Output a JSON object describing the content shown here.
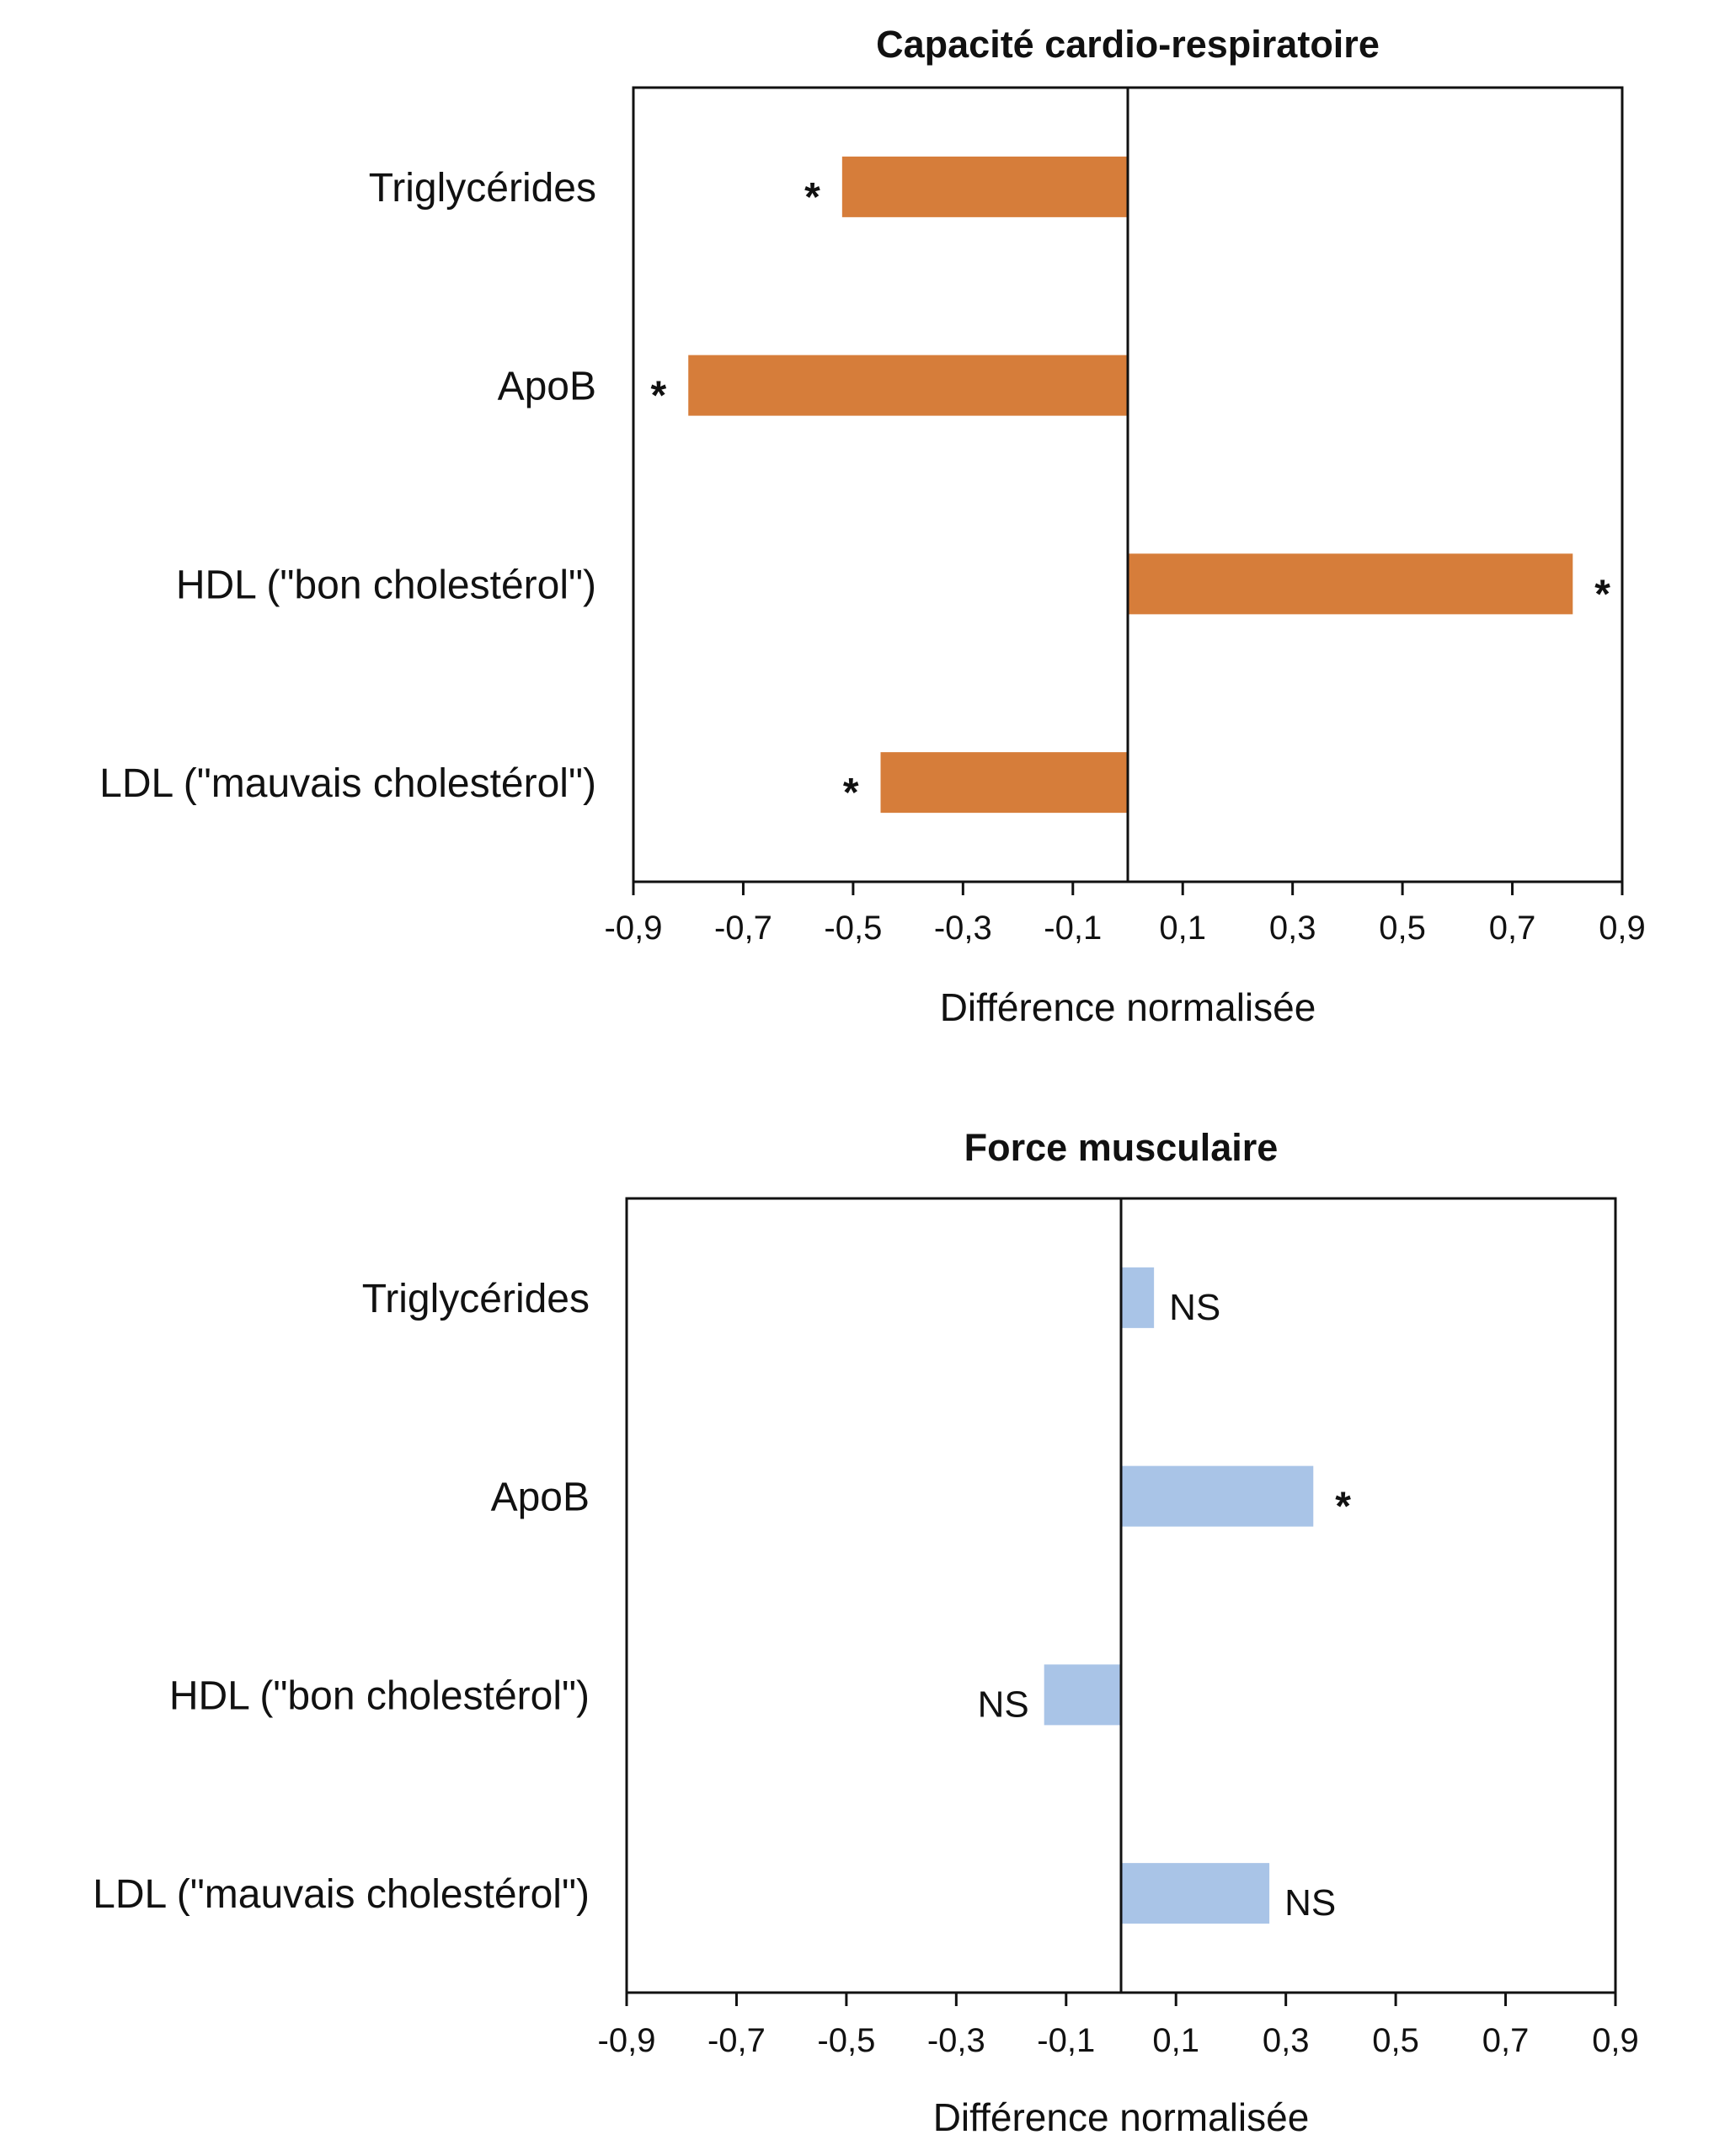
{
  "chart_data": [
    {
      "type": "bar",
      "orientation": "horizontal",
      "title": "Capacité cardio-respiratoire",
      "xlabel": "Différence normalisée",
      "ylabel": "",
      "categories": [
        "Triglycérides",
        "ApoB",
        "HDL  (\"bon cholestérol\")",
        "LDL (\"mauvais cholestérol\")"
      ],
      "values": [
        -0.52,
        -0.8,
        0.81,
        -0.45
      ],
      "annotations": [
        "*",
        "*",
        "*",
        "*"
      ],
      "xlim": [
        -0.9,
        0.9
      ],
      "xticks": [
        "-0,9",
        "-0,7",
        "-0,5",
        "-0,3",
        "-0,1",
        "0,1",
        "0,3",
        "0,5",
        "0,7",
        "0,9"
      ],
      "bar_color": "#d67d3a",
      "grid": false
    },
    {
      "type": "bar",
      "orientation": "horizontal",
      "title": "Force musculaire",
      "xlabel": "Différence normalisée",
      "ylabel": "",
      "categories": [
        "Triglycérides",
        "ApoB",
        "HDL  (\"bon cholestérol\")",
        "LDL (\"mauvais cholestérol\")"
      ],
      "values": [
        0.06,
        0.35,
        -0.14,
        0.27
      ],
      "annotations": [
        "NS",
        "*",
        "NS",
        "NS"
      ],
      "xlim": [
        -0.9,
        0.9
      ],
      "xticks": [
        "-0,9",
        "-0,7",
        "-0,5",
        "-0,3",
        "-0,1",
        "0,1",
        "0,3",
        "0,5",
        "0,7",
        "0,9"
      ],
      "bar_color": "#a9c4e7",
      "grid": false
    }
  ]
}
